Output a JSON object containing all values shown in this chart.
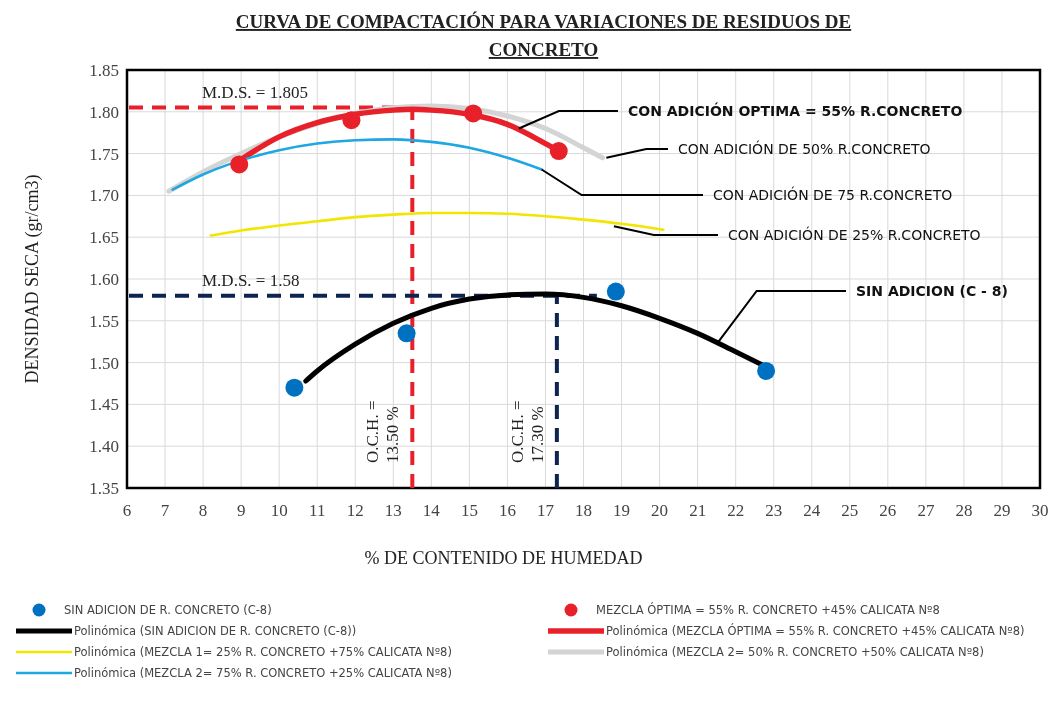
{
  "chart_data": {
    "type": "line",
    "title": "CURVA DE COMPACTACIÓN PARA VARIACIONES DE RESIDUOS DE CONCRETO",
    "xlabel": "% DE CONTENIDO DE HUMEDAD",
    "ylabel": "DENSIDAD SECA (gr/cm3)",
    "xlim": [
      6,
      30
    ],
    "xticks": [
      6,
      7,
      8,
      9,
      10,
      11,
      12,
      13,
      14,
      15,
      16,
      17,
      18,
      19,
      20,
      21,
      22,
      23,
      24,
      25,
      26,
      27,
      28,
      29,
      30
    ],
    "ylim": [
      1.35,
      1.85
    ],
    "yticks": [
      {
        "value": 1.35,
        "label": "1.35"
      },
      {
        "value": 1.4,
        "label": "1.40"
      },
      {
        "value": 1.45,
        "label": "1.45"
      },
      {
        "value": 1.5,
        "label": "1.50"
      },
      {
        "value": 1.55,
        "label": "1.55"
      },
      {
        "value": 1.6,
        "label": "1.60"
      },
      {
        "value": 1.65,
        "label": "1.65"
      },
      {
        "value": 1.7,
        "label": "1.70"
      },
      {
        "value": 1.75,
        "label": "1.75"
      },
      {
        "value": 1.8,
        "label": "1.80"
      },
      {
        "value": 1.85,
        "label": "1.85"
      }
    ],
    "grid": true,
    "legend": "bottom",
    "series": [
      {
        "name": "SIN ADICION DE R. CONCRETO (C-8)",
        "type": "scatter",
        "marker": "circle",
        "color": "#0070c0",
        "x": [
          10.4,
          13.35,
          18.85,
          22.8
        ],
        "values": [
          1.47,
          1.535,
          1.585,
          1.49
        ]
      },
      {
        "name": "Polinómica (SIN ADICION DE R. CONCRETO (C-8))",
        "color": "#000000",
        "x": [
          10.7,
          11,
          12,
          13,
          14,
          15,
          16,
          17,
          18,
          19,
          20,
          21,
          22,
          22.8
        ],
        "values": [
          1.478,
          1.49,
          1.522,
          1.547,
          1.565,
          1.576,
          1.581,
          1.582,
          1.578,
          1.568,
          1.553,
          1.535,
          1.513,
          1.495
        ]
      },
      {
        "name": "Polinómica (MEZCLA 1= 25% R. CONCRETO +75% CALICATA Nº8)",
        "color": "#f2e600",
        "x": [
          8.2,
          9,
          10,
          11,
          12,
          13,
          14,
          15,
          16,
          17,
          18,
          19,
          20.1
        ],
        "values": [
          1.652,
          1.658,
          1.664,
          1.669,
          1.674,
          1.677,
          1.679,
          1.679,
          1.678,
          1.675,
          1.671,
          1.666,
          1.659
        ]
      },
      {
        "name": "Polinómica (MEZCLA 2= 75% R. CONCRETO +25% CALICATA Nº8)",
        "color": "#1ea7e1",
        "x": [
          7.2,
          8,
          10,
          11,
          12,
          13,
          14,
          15,
          16,
          16.9
        ],
        "values": [
          1.707,
          1.725,
          1.754,
          1.762,
          1.766,
          1.767,
          1.764,
          1.757,
          1.745,
          1.731
        ]
      },
      {
        "name": "MEZCLA ÓPTIMA = 55% R. CONCRETO +45% CALICATA Nº8",
        "type": "scatter",
        "marker": "circle",
        "color": "#e8202a",
        "x": [
          8.95,
          11.9,
          15.1,
          17.35
        ],
        "values": [
          1.737,
          1.79,
          1.798,
          1.753
        ]
      },
      {
        "name": "Polinómica (MEZCLA ÓPTIMA = 55% R. CONCRETO +45% CALICATA Nº8)",
        "color": "#e8202a",
        "x": [
          8.9,
          10,
          11,
          12,
          13,
          13.5,
          14,
          15,
          16,
          17,
          17.4
        ],
        "values": [
          1.74,
          1.77,
          1.787,
          1.797,
          1.802,
          1.803,
          1.802,
          1.797,
          1.785,
          1.762,
          1.752
        ]
      },
      {
        "name": "Polinómica (MEZCLA 2= 50% R. CONCRETO +50% CALICATA Nº8)",
        "color": "#d4d4d4",
        "x": [
          7.1,
          8,
          9,
          10,
          11,
          12,
          13,
          14,
          15,
          16,
          17,
          18,
          18.5
        ],
        "values": [
          1.705,
          1.728,
          1.75,
          1.77,
          1.786,
          1.798,
          1.805,
          1.807,
          1.804,
          1.795,
          1.78,
          1.757,
          1.745
        ]
      }
    ],
    "ref_lines": [
      {
        "axis": "y",
        "value": 1.805,
        "label": "M.D.S. = 1.805",
        "color": "#e8202a",
        "line_style": "dashed"
      },
      {
        "axis": "x",
        "value": 13.5,
        "label": "O.C.H. = 13.50 %",
        "color": "#e8202a",
        "line_style": "dashed"
      },
      {
        "axis": "y",
        "value": 1.58,
        "label": "M.D.S. = 1.58",
        "color": "#0d2350",
        "line_style": "dashed"
      },
      {
        "axis": "x",
        "value": 17.3,
        "label": "O.C.H. = 17.30 %",
        "color": "#0d2350",
        "line_style": "dashed"
      }
    ],
    "annotations": [
      {
        "text": "CON ADICIÓN  OPTIMA = 55% R.CONCRETO",
        "x": 16.3,
        "y": 1.78
      },
      {
        "text": "CON ADICIÓN DE  50% R.CONCRETO",
        "x": 18.6,
        "y": 1.745
      },
      {
        "text": "CON ADICIÓN DE  75 R.CONCRETO",
        "x": 16.9,
        "y": 1.731
      },
      {
        "text": "CON ADICIÓN DE 25% R.CONCRETO",
        "x": 18.8,
        "y": 1.663
      },
      {
        "text": "SIN ADICION (C - 8)",
        "x": 21.5,
        "y": 1.522
      }
    ]
  }
}
